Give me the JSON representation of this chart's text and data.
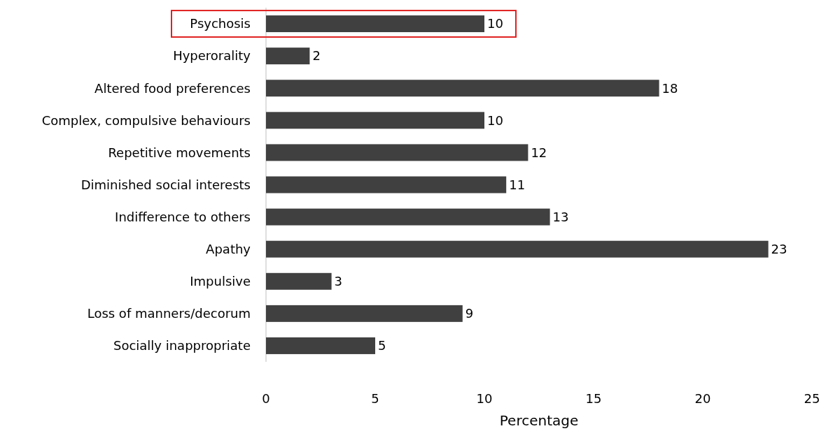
{
  "chart_data": {
    "type": "bar",
    "orientation": "horizontal",
    "xlabel": "Percentage",
    "categories": [
      "Psychosis",
      "Hyperorality",
      "Altered food preferences",
      "Complex, compulsive behaviours",
      "Repetitive movements",
      "Diminished social interests",
      "Indifference to others",
      "Apathy",
      "Impulsive",
      "Loss of manners/decorum",
      "Socially inappropriate"
    ],
    "values": [
      10,
      2,
      18,
      10,
      12,
      11,
      13,
      23,
      3,
      9,
      5
    ],
    "color": "#404040",
    "data_labels": true,
    "xlim": [
      0,
      25
    ],
    "xticks": [
      0,
      5,
      10,
      15,
      20,
      25
    ]
  }
}
